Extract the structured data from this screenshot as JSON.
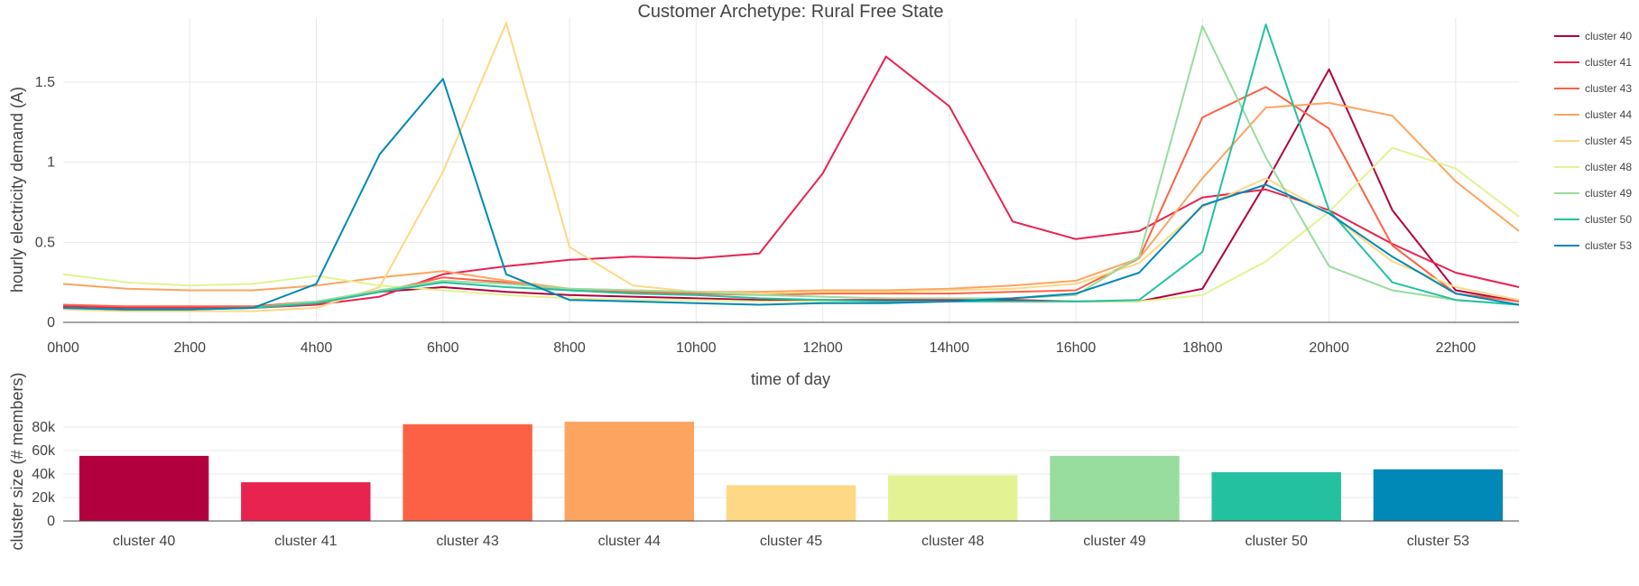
{
  "chart_data": [
    {
      "type": "line",
      "title": "Customer Archetype: Rural Free State",
      "xlabel": "time of day",
      "ylabel": "hourly electricity demand (A)",
      "x": [
        "0h00",
        "1h00",
        "2h00",
        "3h00",
        "4h00",
        "5h00",
        "6h00",
        "7h00",
        "8h00",
        "9h00",
        "10h00",
        "11h00",
        "12h00",
        "13h00",
        "14h00",
        "15h00",
        "16h00",
        "17h00",
        "18h00",
        "19h00",
        "20h00",
        "21h00",
        "22h00",
        "23h00"
      ],
      "x_tick_labels": [
        "0h00",
        "2h00",
        "4h00",
        "6h00",
        "8h00",
        "10h00",
        "12h00",
        "14h00",
        "16h00",
        "18h00",
        "20h00",
        "22h00"
      ],
      "y_ticks": [
        0,
        0.5,
        1,
        1.5
      ],
      "y_tick_labels": [
        "0",
        "0.5",
        "1",
        "1.5"
      ],
      "ylim": [
        0,
        1.9
      ],
      "grid": true,
      "legend_position": "right",
      "series": [
        {
          "name": "cluster 40",
          "color": "#b2003f",
          "values": [
            0.1,
            0.09,
            0.09,
            0.09,
            0.12,
            0.19,
            0.22,
            0.19,
            0.17,
            0.16,
            0.15,
            0.14,
            0.14,
            0.14,
            0.14,
            0.14,
            0.13,
            0.13,
            0.21,
            0.87,
            1.58,
            0.7,
            0.2,
            0.13
          ]
        },
        {
          "name": "cluster 41",
          "color": "#e8234f",
          "values": [
            0.1,
            0.09,
            0.09,
            0.09,
            0.11,
            0.16,
            0.3,
            0.35,
            0.39,
            0.41,
            0.4,
            0.43,
            0.93,
            1.66,
            1.35,
            0.63,
            0.52,
            0.57,
            0.78,
            0.83,
            0.7,
            0.49,
            0.31,
            0.22
          ]
        },
        {
          "name": "cluster 43",
          "color": "#fd6145",
          "values": [
            0.11,
            0.1,
            0.1,
            0.1,
            0.13,
            0.19,
            0.28,
            0.25,
            0.2,
            0.19,
            0.18,
            0.17,
            0.18,
            0.18,
            0.18,
            0.19,
            0.2,
            0.4,
            1.28,
            1.47,
            1.21,
            0.48,
            0.18,
            0.13
          ]
        },
        {
          "name": "cluster 44",
          "color": "#fda461",
          "values": [
            0.24,
            0.21,
            0.2,
            0.2,
            0.23,
            0.28,
            0.32,
            0.26,
            0.21,
            0.2,
            0.19,
            0.19,
            0.2,
            0.2,
            0.21,
            0.23,
            0.26,
            0.4,
            0.9,
            1.34,
            1.37,
            1.29,
            0.88,
            0.57
          ]
        },
        {
          "name": "cluster 45",
          "color": "#fed884",
          "values": [
            0.08,
            0.07,
            0.07,
            0.07,
            0.09,
            0.22,
            0.94,
            1.87,
            0.47,
            0.23,
            0.19,
            0.18,
            0.19,
            0.19,
            0.2,
            0.21,
            0.24,
            0.37,
            0.72,
            0.9,
            0.68,
            0.38,
            0.22,
            0.14
          ]
        },
        {
          "name": "cluster 48",
          "color": "#e3f293",
          "values": [
            0.3,
            0.25,
            0.23,
            0.24,
            0.29,
            0.23,
            0.2,
            0.17,
            0.15,
            0.14,
            0.14,
            0.13,
            0.13,
            0.13,
            0.13,
            0.13,
            0.13,
            0.13,
            0.17,
            0.38,
            0.69,
            1.09,
            0.96,
            0.66
          ]
        },
        {
          "name": "cluster 49",
          "color": "#98dd9d",
          "values": [
            0.09,
            0.08,
            0.08,
            0.09,
            0.13,
            0.2,
            0.26,
            0.24,
            0.21,
            0.2,
            0.19,
            0.17,
            0.16,
            0.15,
            0.15,
            0.15,
            0.17,
            0.41,
            1.85,
            1.03,
            0.35,
            0.2,
            0.14,
            0.11
          ]
        },
        {
          "name": "cluster 50",
          "color": "#23c1a0",
          "values": [
            0.09,
            0.08,
            0.08,
            0.09,
            0.12,
            0.19,
            0.25,
            0.22,
            0.2,
            0.18,
            0.17,
            0.15,
            0.14,
            0.13,
            0.13,
            0.13,
            0.13,
            0.14,
            0.44,
            1.86,
            0.7,
            0.25,
            0.14,
            0.11
          ]
        },
        {
          "name": "cluster 53",
          "color": "#0088b7",
          "values": [
            0.09,
            0.08,
            0.08,
            0.09,
            0.24,
            1.05,
            1.52,
            0.3,
            0.14,
            0.13,
            0.12,
            0.11,
            0.12,
            0.12,
            0.13,
            0.15,
            0.18,
            0.31,
            0.73,
            0.86,
            0.68,
            0.41,
            0.18,
            0.11
          ]
        }
      ]
    },
    {
      "type": "bar",
      "ylabel": "cluster size (# members)",
      "categories": [
        "cluster 40",
        "cluster 41",
        "cluster 43",
        "cluster 44",
        "cluster 45",
        "cluster 48",
        "cluster 49",
        "cluster 50",
        "cluster 53"
      ],
      "values": [
        55500,
        33000,
        82500,
        84500,
        30500,
        39000,
        55500,
        41500,
        44000
      ],
      "colors": [
        "#b2003f",
        "#e8234f",
        "#fd6145",
        "#fda461",
        "#fed884",
        "#e3f293",
        "#98dd9d",
        "#23c1a0",
        "#0088b7"
      ],
      "y_ticks": [
        0,
        20000,
        40000,
        60000,
        80000
      ],
      "y_tick_labels": [
        "0",
        "20k",
        "40k",
        "60k",
        "80k"
      ],
      "ylim": [
        0,
        90000
      ],
      "grid": true
    }
  ]
}
